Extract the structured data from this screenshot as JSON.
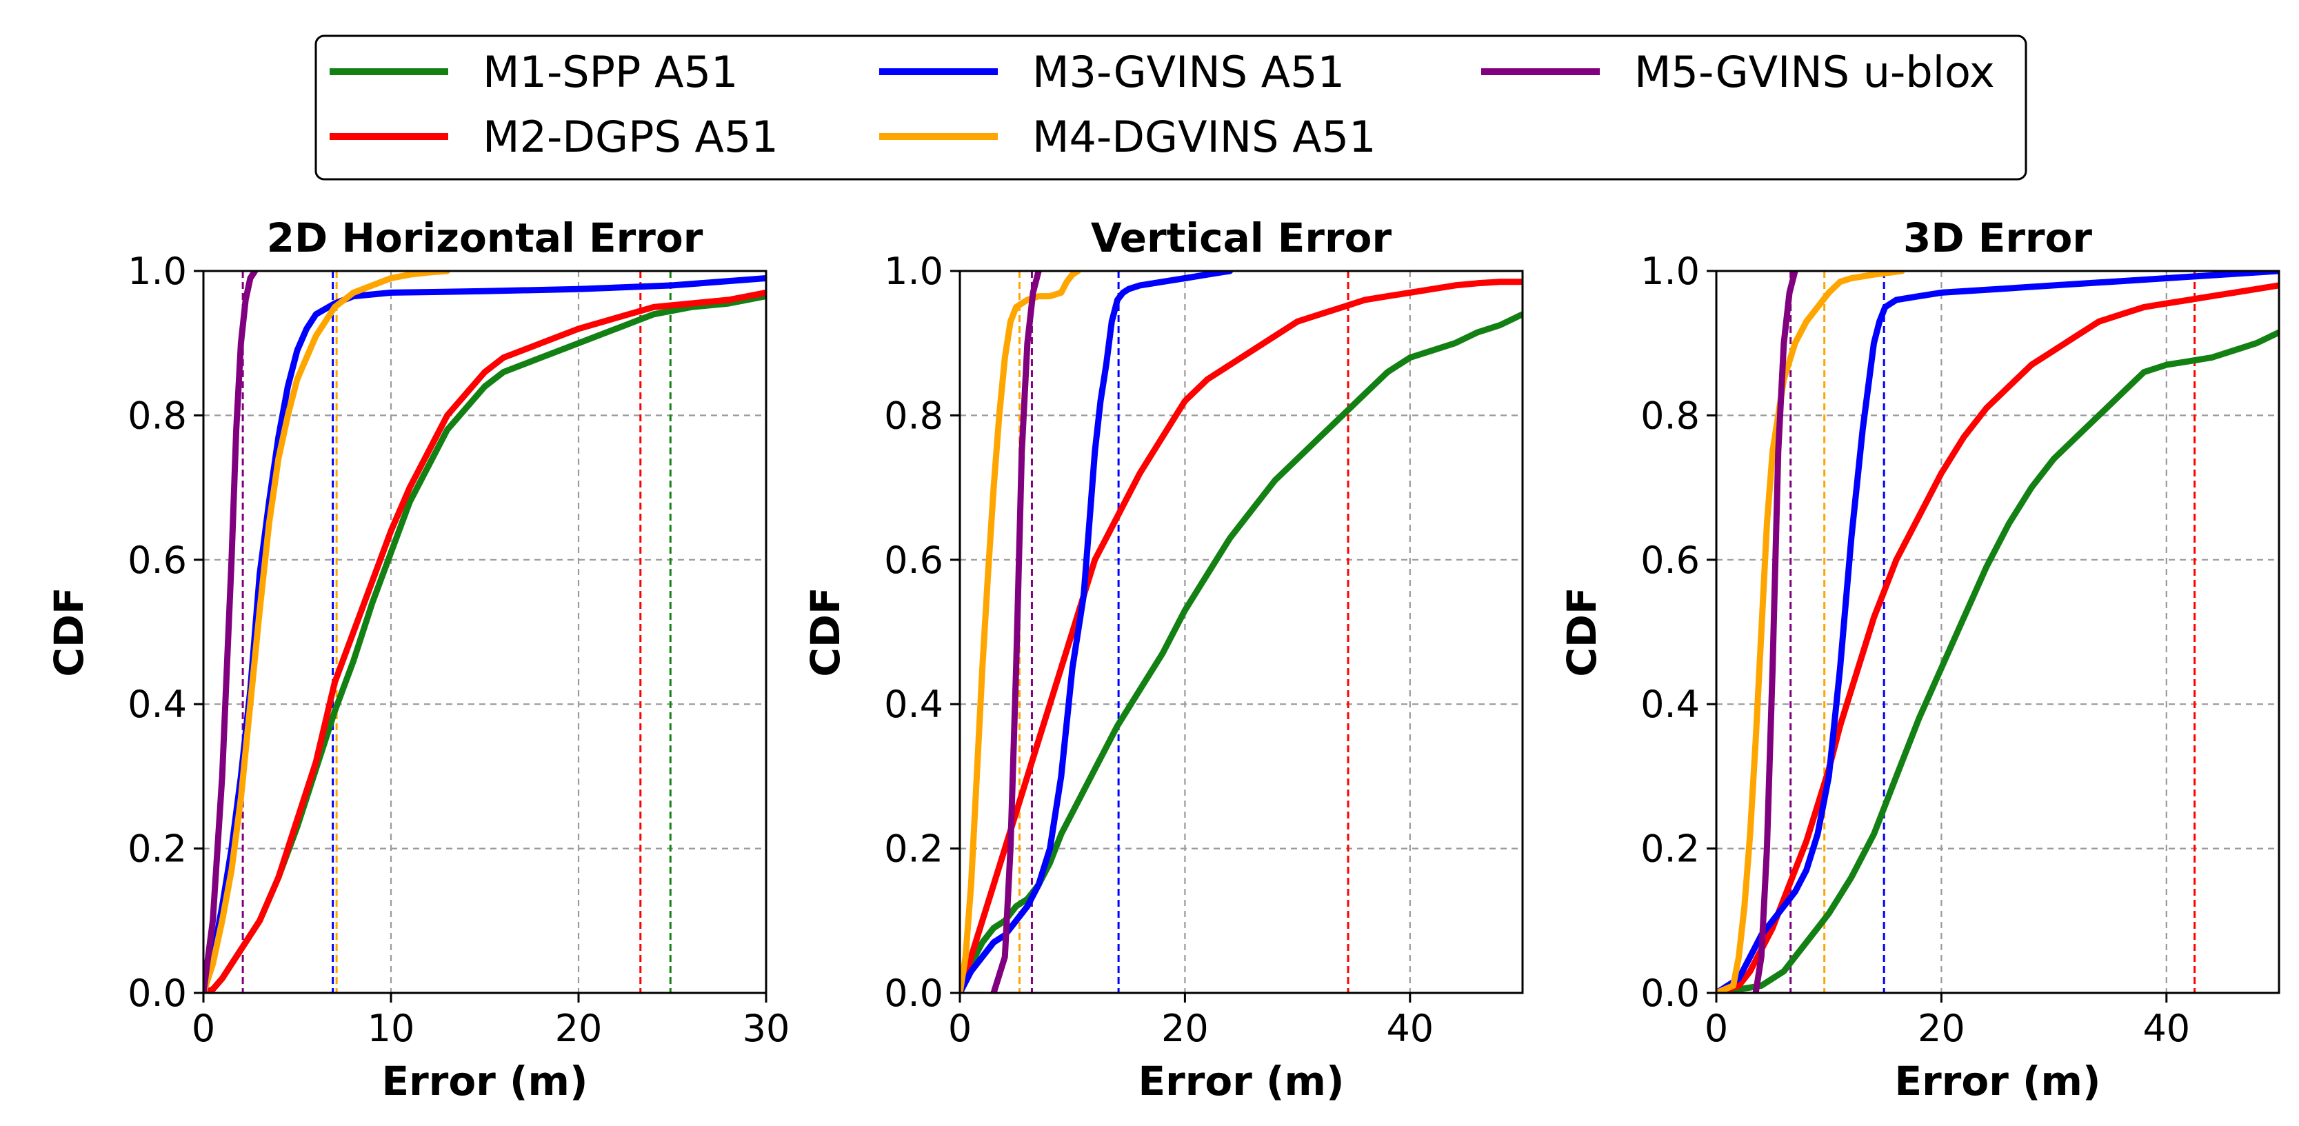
{
  "chart_data": [
    {
      "type": "line",
      "title": "2D Horizontal Error",
      "xlabel": "Error (m)",
      "ylabel": "CDF",
      "xlim": [
        0,
        30
      ],
      "ylim": [
        0,
        1
      ],
      "xticks": [
        "0",
        "10",
        "20",
        "30"
      ],
      "yticks": [
        "0.0",
        "0.2",
        "0.4",
        "0.6",
        "0.8",
        "1.0"
      ],
      "grid": true,
      "series": [
        {
          "name": "M1-SPP A51",
          "x": [
            0,
            0.5,
            1,
            1.5,
            2,
            2.5,
            3,
            4,
            5,
            6,
            7,
            8,
            9,
            10,
            11,
            12,
            13,
            14,
            15,
            16,
            17,
            18,
            20,
            22,
            24,
            26,
            28,
            30
          ],
          "y": [
            0,
            0.005,
            0.02,
            0.04,
            0.06,
            0.08,
            0.1,
            0.16,
            0.23,
            0.31,
            0.39,
            0.46,
            0.54,
            0.61,
            0.68,
            0.73,
            0.78,
            0.81,
            0.84,
            0.86,
            0.87,
            0.88,
            0.9,
            0.92,
            0.94,
            0.95,
            0.955,
            0.965
          ]
        },
        {
          "name": "M2-DGPS A51",
          "x": [
            0,
            0.5,
            1,
            1.5,
            2,
            2.5,
            3,
            4,
            5,
            6,
            7,
            8,
            9,
            10,
            11,
            12,
            13,
            14,
            15,
            16,
            17,
            18,
            20,
            22,
            24,
            26,
            28,
            30
          ],
          "y": [
            0,
            0.005,
            0.02,
            0.04,
            0.06,
            0.08,
            0.1,
            0.16,
            0.24,
            0.32,
            0.43,
            0.5,
            0.57,
            0.64,
            0.7,
            0.75,
            0.8,
            0.83,
            0.86,
            0.88,
            0.89,
            0.9,
            0.92,
            0.935,
            0.95,
            0.955,
            0.96,
            0.97
          ]
        },
        {
          "name": "M3-GVINS A51",
          "x": [
            0,
            0.5,
            1,
            1.5,
            2,
            2.5,
            3,
            3.5,
            4,
            4.5,
            5,
            5.5,
            6,
            7,
            8,
            10,
            15,
            20,
            25,
            30
          ],
          "y": [
            0,
            0.05,
            0.12,
            0.2,
            0.3,
            0.42,
            0.58,
            0.68,
            0.77,
            0.84,
            0.89,
            0.92,
            0.94,
            0.955,
            0.965,
            0.97,
            0.972,
            0.975,
            0.98,
            0.99
          ]
        },
        {
          "name": "M4-DGVINS A51",
          "x": [
            0,
            0.5,
            1,
            1.5,
            2,
            2.5,
            3,
            3.5,
            4,
            4.5,
            5,
            6,
            7,
            8,
            9,
            10,
            11,
            12,
            13
          ],
          "y": [
            0,
            0.04,
            0.1,
            0.17,
            0.27,
            0.4,
            0.53,
            0.65,
            0.74,
            0.8,
            0.85,
            0.91,
            0.95,
            0.97,
            0.98,
            0.99,
            0.995,
            0.998,
            1.0
          ]
        },
        {
          "name": "M5-GVINS u-blox",
          "x": [
            0,
            0.5,
            1,
            1.25,
            1.5,
            1.75,
            2,
            2.25,
            2.5,
            2.75
          ],
          "y": [
            0,
            0.1,
            0.3,
            0.45,
            0.6,
            0.78,
            0.9,
            0.96,
            0.99,
            1.0
          ]
        }
      ],
      "reference_lines": [
        {
          "series": "M1-SPP A51",
          "x": 24.9
        },
        {
          "series": "M2-DGPS A51",
          "x": 23.3
        },
        {
          "series": "M3-GVINS A51",
          "x": 6.9
        },
        {
          "series": "M4-DGVINS A51",
          "x": 7.1
        },
        {
          "series": "M5-GVINS u-blox",
          "x": 2.1
        }
      ]
    },
    {
      "type": "line",
      "title": "Vertical Error",
      "xlabel": "Error (m)",
      "ylabel": "CDF",
      "xlim": [
        0,
        50
      ],
      "ylim": [
        0,
        1
      ],
      "xticks": [
        "0",
        "20",
        "40"
      ],
      "yticks": [
        "0.0",
        "0.2",
        "0.4",
        "0.6",
        "0.8",
        "1.0"
      ],
      "grid": true,
      "series": [
        {
          "name": "M1-SPP A51",
          "x": [
            0,
            1,
            2,
            3,
            4,
            5,
            6,
            7,
            8,
            9,
            10,
            12,
            14,
            16,
            18,
            20,
            22,
            24,
            26,
            28,
            30,
            32,
            34,
            36,
            38,
            40,
            42,
            44,
            46,
            48,
            50
          ],
          "y": [
            0,
            0.04,
            0.07,
            0.09,
            0.1,
            0.12,
            0.13,
            0.15,
            0.18,
            0.22,
            0.25,
            0.31,
            0.37,
            0.42,
            0.47,
            0.53,
            0.58,
            0.63,
            0.67,
            0.71,
            0.74,
            0.77,
            0.8,
            0.83,
            0.86,
            0.88,
            0.89,
            0.9,
            0.915,
            0.925,
            0.94
          ]
        },
        {
          "name": "M2-DGPS A51",
          "x": [
            0,
            1,
            2,
            3,
            4,
            5,
            6,
            7,
            8,
            9,
            10,
            11,
            12,
            13,
            14,
            15,
            16,
            18,
            20,
            22,
            24,
            26,
            28,
            30,
            32,
            34,
            36,
            38,
            40,
            42,
            44,
            46,
            48,
            50
          ],
          "y": [
            0,
            0.05,
            0.1,
            0.15,
            0.2,
            0.25,
            0.3,
            0.35,
            0.4,
            0.45,
            0.5,
            0.55,
            0.6,
            0.63,
            0.66,
            0.69,
            0.72,
            0.77,
            0.82,
            0.85,
            0.87,
            0.89,
            0.91,
            0.93,
            0.94,
            0.95,
            0.96,
            0.965,
            0.97,
            0.975,
            0.98,
            0.983,
            0.985,
            0.985
          ]
        },
        {
          "name": "M3-GVINS A51",
          "x": [
            0,
            1,
            2,
            3,
            4,
            5,
            6,
            7,
            8,
            9,
            10,
            11,
            11.5,
            12,
            12.5,
            13,
            13.5,
            14,
            14.5,
            15,
            16,
            18,
            20,
            22,
            24
          ],
          "y": [
            0,
            0.03,
            0.05,
            0.07,
            0.08,
            0.1,
            0.12,
            0.15,
            0.2,
            0.3,
            0.45,
            0.55,
            0.65,
            0.75,
            0.82,
            0.87,
            0.93,
            0.96,
            0.97,
            0.975,
            0.98,
            0.985,
            0.99,
            0.995,
            1.0
          ]
        },
        {
          "name": "M4-DGVINS A51",
          "x": [
            0,
            0.5,
            1,
            1.5,
            2,
            2.5,
            3,
            3.5,
            4,
            4.5,
            5,
            6,
            7,
            8,
            9,
            9.5,
            10,
            10.5
          ],
          "y": [
            0,
            0.05,
            0.15,
            0.3,
            0.45,
            0.58,
            0.7,
            0.8,
            0.88,
            0.93,
            0.95,
            0.96,
            0.965,
            0.965,
            0.97,
            0.985,
            0.995,
            1.0
          ]
        },
        {
          "name": "M5-GVINS u-blox",
          "x": [
            3,
            4,
            4.5,
            5,
            5.5,
            6,
            6.5,
            7
          ],
          "y": [
            0,
            0.05,
            0.2,
            0.45,
            0.75,
            0.9,
            0.97,
            1.0
          ]
        }
      ],
      "reference_lines": [
        {
          "series": "M2-DGPS A51",
          "x": 34.5
        },
        {
          "series": "M3-GVINS A51",
          "x": 14.1
        },
        {
          "series": "M4-DGVINS A51",
          "x": 5.3
        },
        {
          "series": "M5-GVINS u-blox",
          "x": 6.4
        }
      ]
    },
    {
      "type": "line",
      "title": "3D Error",
      "xlabel": "Error (m)",
      "ylabel": "CDF",
      "xlim": [
        0,
        50
      ],
      "ylim": [
        0,
        1
      ],
      "xticks": [
        "0",
        "20",
        "40"
      ],
      "yticks": [
        "0.0",
        "0.2",
        "0.4",
        "0.6",
        "0.8",
        "1.0"
      ],
      "grid": true,
      "series": [
        {
          "name": "M1-SPP A51",
          "x": [
            0,
            2,
            4,
            5,
            6,
            7,
            8,
            9,
            10,
            12,
            14,
            16,
            18,
            20,
            22,
            24,
            26,
            28,
            30,
            32,
            34,
            36,
            38,
            40,
            42,
            44,
            46,
            48,
            50
          ],
          "y": [
            0,
            0.005,
            0.01,
            0.02,
            0.03,
            0.05,
            0.07,
            0.09,
            0.11,
            0.16,
            0.22,
            0.3,
            0.38,
            0.45,
            0.52,
            0.59,
            0.65,
            0.7,
            0.74,
            0.77,
            0.8,
            0.83,
            0.86,
            0.87,
            0.875,
            0.88,
            0.89,
            0.9,
            0.915
          ]
        },
        {
          "name": "M2-DGPS A51",
          "x": [
            0,
            2,
            3,
            4,
            5,
            6,
            7,
            8,
            9,
            10,
            11,
            12,
            13,
            14,
            15,
            16,
            18,
            20,
            22,
            24,
            26,
            28,
            30,
            32,
            34,
            36,
            38,
            40,
            42,
            44,
            46,
            48,
            50
          ],
          "y": [
            0,
            0.01,
            0.03,
            0.06,
            0.09,
            0.13,
            0.17,
            0.21,
            0.26,
            0.31,
            0.37,
            0.42,
            0.47,
            0.52,
            0.56,
            0.6,
            0.66,
            0.72,
            0.77,
            0.81,
            0.84,
            0.87,
            0.89,
            0.91,
            0.93,
            0.94,
            0.95,
            0.955,
            0.96,
            0.965,
            0.97,
            0.975,
            0.98
          ]
        },
        {
          "name": "M3-GVINS A51",
          "x": [
            0,
            2,
            3,
            4,
            5,
            6,
            7,
            8,
            9,
            10,
            11,
            12,
            13,
            14,
            14.5,
            15,
            16,
            18,
            20,
            25,
            30,
            35,
            40,
            45,
            50
          ],
          "y": [
            0,
            0.02,
            0.05,
            0.08,
            0.1,
            0.12,
            0.14,
            0.17,
            0.22,
            0.3,
            0.45,
            0.63,
            0.78,
            0.9,
            0.93,
            0.95,
            0.96,
            0.965,
            0.97,
            0.975,
            0.98,
            0.985,
            0.99,
            0.995,
            1.0
          ]
        },
        {
          "name": "M4-DGVINS A51",
          "x": [
            0,
            1.5,
            2,
            2.5,
            3,
            3.5,
            4,
            4.5,
            5,
            6,
            7,
            8,
            9,
            10,
            11,
            12,
            14,
            16.5
          ],
          "y": [
            0,
            0.01,
            0.05,
            0.12,
            0.22,
            0.35,
            0.5,
            0.65,
            0.75,
            0.85,
            0.9,
            0.93,
            0.95,
            0.97,
            0.985,
            0.99,
            0.995,
            1.0
          ]
        },
        {
          "name": "M5-GVINS u-blox",
          "x": [
            3.5,
            4,
            4.5,
            5,
            5.5,
            6,
            6.5,
            7
          ],
          "y": [
            0,
            0.05,
            0.2,
            0.45,
            0.75,
            0.9,
            0.97,
            1.0
          ]
        }
      ],
      "reference_lines": [
        {
          "series": "M2-DGPS A51",
          "x": 42.5
        },
        {
          "series": "M3-GVINS A51",
          "x": 14.9
        },
        {
          "series": "M4-DGVINS A51",
          "x": 9.6
        },
        {
          "series": "M5-GVINS u-blox",
          "x": 6.6
        }
      ]
    }
  ],
  "legend": {
    "placement": "top-center",
    "entries": [
      {
        "label": "M1-SPP A51",
        "color": "#138013"
      },
      {
        "label": "M2-DGPS A51",
        "color": "#ff0000"
      },
      {
        "label": "M3-GVINS A51",
        "color": "#0000ff"
      },
      {
        "label": "M4-DGVINS A51",
        "color": "#ffa500"
      },
      {
        "label": "M5-GVINS u-blox",
        "color": "#800080"
      }
    ]
  },
  "colors": {
    "M1-SPP A51": "#138013",
    "M2-DGPS A51": "#ff0000",
    "M3-GVINS A51": "#0000ff",
    "M4-DGVINS A51": "#ffa500",
    "M5-GVINS u-blox": "#800080"
  }
}
